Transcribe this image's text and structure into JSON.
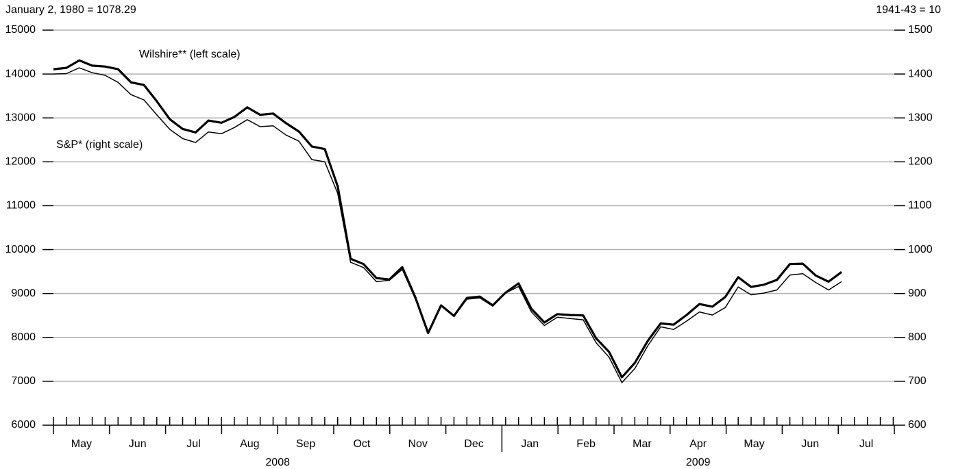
{
  "chart_data": {
    "type": "line",
    "left_note": "January 2, 1980 = 1078.29",
    "right_note": "1941-43 = 10",
    "months": [
      "May",
      "Jun",
      "Jul",
      "Aug",
      "Sep",
      "Oct",
      "Nov",
      "Dec",
      "Jan",
      "Feb",
      "Mar",
      "Apr",
      "May",
      "Jun",
      "Jul"
    ],
    "years": [
      "2008",
      "2009"
    ],
    "ylim": [
      6000,
      15000
    ],
    "yticks": [
      6000,
      7000,
      8000,
      9000,
      10000,
      11000,
      12000,
      13000,
      14000,
      15000
    ],
    "y2lim": [
      600,
      1500
    ],
    "y2ticks": [
      600,
      700,
      800,
      900,
      1000,
      1100,
      1200,
      1300,
      1400,
      1500
    ],
    "grid": true,
    "series": [
      {
        "name": "Wilshire** (left scale)",
        "color": "#000000",
        "width": 3.2,
        "values": [
          14110,
          14140,
          14310,
          14190,
          14170,
          14110,
          13810,
          13750,
          13380,
          12970,
          12750,
          12670,
          12940,
          12890,
          13020,
          13240,
          13070,
          13100,
          12880,
          12690,
          12350,
          12290,
          11440,
          9790,
          9670,
          9350,
          9320,
          9600,
          8920,
          8100,
          8730,
          8490,
          8900,
          8930,
          8730,
          9020,
          9230,
          8650,
          8340,
          8530,
          8510,
          8500,
          7980,
          7670,
          7090,
          7420,
          7920,
          8320,
          8290,
          8510,
          8760,
          8700,
          8920,
          9370,
          9150,
          9200,
          9310,
          9670,
          9680,
          9410,
          9270,
          9490
        ]
      },
      {
        "name": "S&P* (right scale)",
        "color": "#000000",
        "width": 1.5,
        "axis": "y2",
        "values": [
          1400,
          1401,
          1414,
          1403,
          1397,
          1381,
          1353,
          1341,
          1307,
          1274,
          1253,
          1244,
          1268,
          1264,
          1278,
          1296,
          1280,
          1282,
          1261,
          1247,
          1205,
          1200,
          1128,
          971,
          959,
          927,
          930,
          955,
          888,
          810,
          873,
          848,
          887,
          890,
          871,
          901,
          916,
          858,
          827,
          846,
          843,
          840,
          788,
          755,
          697,
          729,
          781,
          824,
          818,
          837,
          858,
          851,
          868,
          915,
          897,
          901,
          908,
          942,
          945,
          925,
          908,
          927
        ]
      }
    ]
  }
}
